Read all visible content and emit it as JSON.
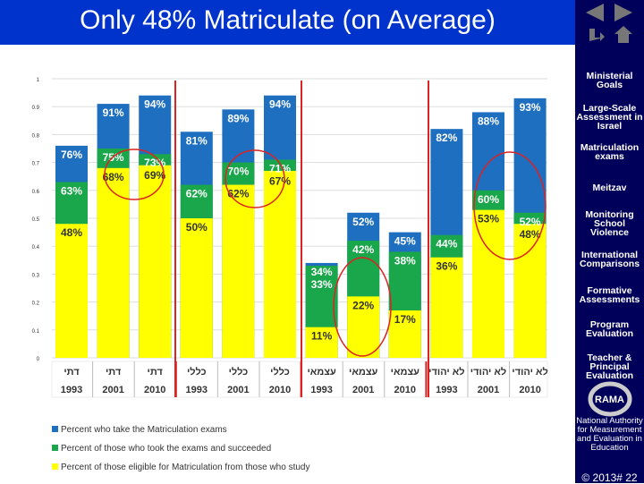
{
  "title": "Only 48% Matriculate (on Average)",
  "sidebar": {
    "items": [
      "Ministerial Goals",
      "Large-Scale Assessment in Israel",
      "Matriculation exams",
      "Meitzav",
      "Monitoring School Violence",
      "International Comparisons",
      "Formative Assessments",
      "Program Evaluation",
      "Teacher & Principal Evaluation"
    ],
    "logo": "RAMA",
    "org": "National Authority for Measurement and Evaluation in Education",
    "footer": "© 2013# 22"
  },
  "chart_data": {
    "type": "bar",
    "ylim": [
      0,
      1
    ],
    "grid": true,
    "yticks": [
      "0",
      "0.1",
      "0.2",
      "0.3",
      "0.4",
      "0.5",
      "0.6",
      "0.7",
      "0.8",
      "0.9",
      "1"
    ],
    "categories": [
      [
        "דתי",
        "1993"
      ],
      [
        "דתי",
        "2001"
      ],
      [
        "דתי",
        "2010"
      ],
      [
        "כללי",
        "1993"
      ],
      [
        "כללי",
        "2001"
      ],
      [
        "כללי",
        "2010"
      ],
      [
        "עצמאי",
        "1993"
      ],
      [
        "עצמאי",
        "2001"
      ],
      [
        "עצמאי",
        "2010"
      ],
      [
        "לא יהודי",
        "1993"
      ],
      [
        "לא יהודי",
        "2001"
      ],
      [
        "לא יהודי",
        "2010"
      ]
    ],
    "series": [
      {
        "name": "Percent who take the Matriculation exams",
        "color": "#1f6fc0",
        "values": [
          76,
          91,
          94,
          81,
          89,
          94,
          34,
          52,
          45,
          82,
          88,
          93
        ]
      },
      {
        "name": "Percent of those who took the exams and succeeded",
        "color": "#1aa64a",
        "values": [
          63,
          75,
          73,
          62,
          70,
          71,
          33,
          42,
          38,
          44,
          60,
          52
        ]
      },
      {
        "name": "Percent of those eligible for Matriculation from those who study",
        "color": "#ffff00",
        "values": [
          48,
          68,
          69,
          50,
          62,
          67,
          11,
          22,
          17,
          36,
          53,
          48
        ]
      }
    ],
    "legend_position": "bottom-left"
  }
}
